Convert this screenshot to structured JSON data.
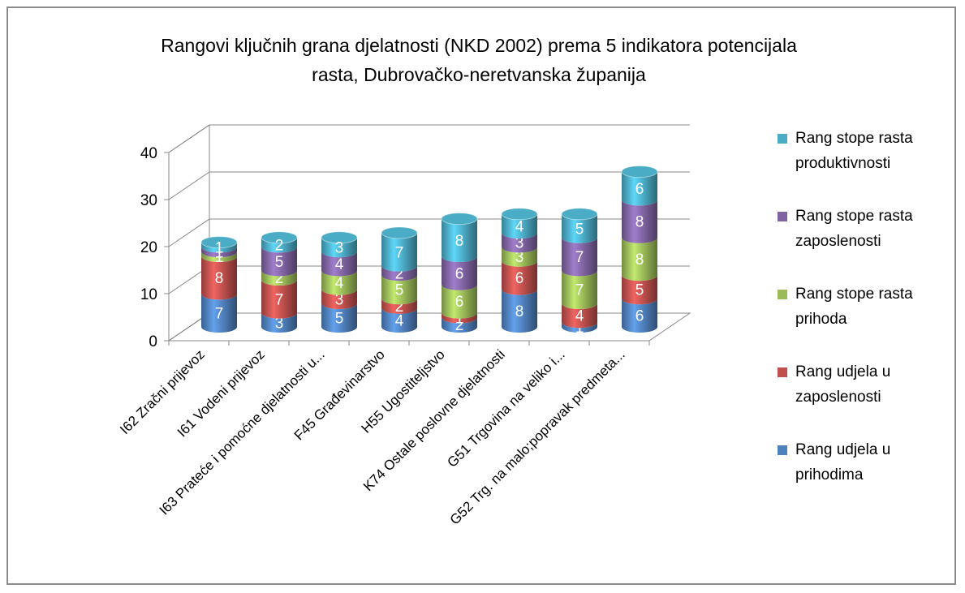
{
  "chart_data": {
    "type": "bar3d-cylinder-stacked",
    "title": "Rangovi ključnih grana djelatnosti (NKD 2002) prema 5 indikatora potencijala rasta, Dubrovačko-neretvanska županija",
    "categories": [
      "I62 Zračni prijevoz",
      "I61 Vodeni prijevoz",
      "I63 Prateće i pomoćne djelatnosti u...",
      "F45 Građevinarstvo",
      "H55 Ugostiteljstvo",
      "K74 Ostale poslovne djelatnosti",
      "G51 Trgovina na veliko i...",
      "G52 Trg. na malo;popravak predmeta..."
    ],
    "series": [
      {
        "name": "Rang udjela u prihodima",
        "color": "#4f81bd",
        "values": [
          7,
          3,
          5,
          4,
          2,
          8,
          1,
          6
        ]
      },
      {
        "name": "Rang udjela u zaposlenosti",
        "color": "#c0504d",
        "values": [
          8,
          7,
          3,
          2,
          1,
          6,
          4,
          5
        ]
      },
      {
        "name": "Rang stope rasta prihoda",
        "color": "#9bbb59",
        "values": [
          1,
          2,
          4,
          5,
          6,
          3,
          7,
          8
        ]
      },
      {
        "name": "Rang stope rasta zaposlenosti",
        "color": "#8064a2",
        "values": [
          1,
          5,
          4,
          2,
          6,
          3,
          7,
          8
        ]
      },
      {
        "name": "Rang stope rasta produktivnosti",
        "color": "#4bacc6",
        "values": [
          1,
          2,
          3,
          7,
          8,
          4,
          5,
          6
        ]
      }
    ],
    "ylim": [
      0,
      40
    ],
    "yticks": [
      0,
      10,
      20,
      30,
      40
    ],
    "grid": true,
    "legend": "right",
    "stacked": true
  }
}
